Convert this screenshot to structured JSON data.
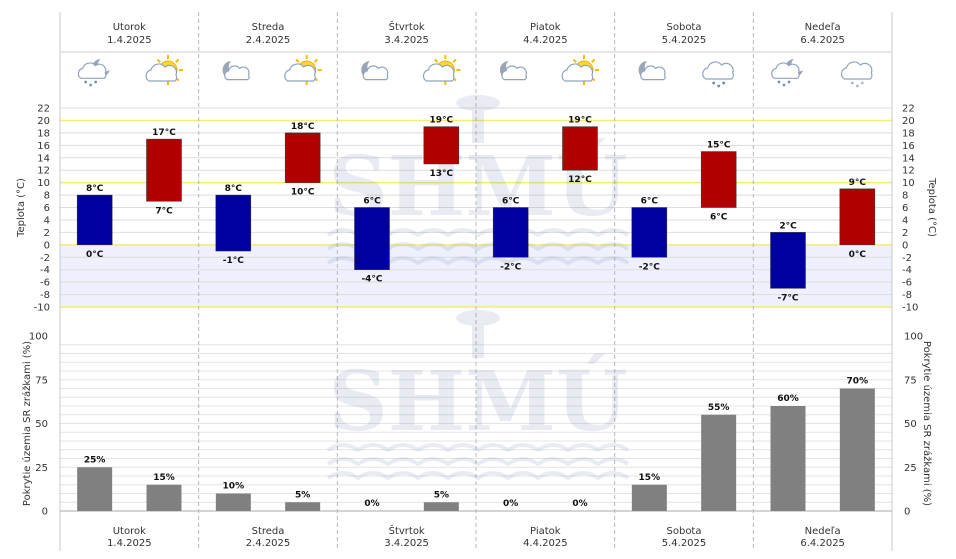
{
  "days": [
    {
      "name": "Utorok",
      "date": "1.4.2025",
      "icons": [
        "night-cloudy-rain-icon",
        "partly-sunny-icon"
      ]
    },
    {
      "name": "Streda",
      "date": "2.4.2025",
      "icons": [
        "partly-cloudy-night-icon",
        "partly-sunny-icon"
      ]
    },
    {
      "name": "Štvrtok",
      "date": "3.4.2025",
      "icons": [
        "clear-night-cloud-icon",
        "sun-behind-cloud-icon"
      ]
    },
    {
      "name": "Piatok",
      "date": "4.4.2025",
      "icons": [
        "clear-night-cloud-icon",
        "sun-behind-cloud-icon"
      ]
    },
    {
      "name": "Sobota",
      "date": "5.4.2025",
      "icons": [
        "partly-cloudy-night-icon",
        "cloudy-rain-icon"
      ]
    },
    {
      "name": "Nedeľa",
      "date": "6.4.2025",
      "icons": [
        "night-cloudy-rain-icon",
        "cloudy-snow-icon"
      ]
    }
  ],
  "watermark": "SHMÚ",
  "chart_data": [
    {
      "type": "bar",
      "subtype": "range",
      "ylabel": "Teplota (°C)",
      "ylabel_right": "Teplota (°C)",
      "ylim": [
        -10,
        22
      ],
      "yticks": [
        -10,
        -8,
        -6,
        -4,
        -2,
        0,
        2,
        4,
        6,
        8,
        10,
        12,
        14,
        16,
        18,
        20,
        22
      ],
      "highlight_lines": [
        -10,
        0,
        10,
        20
      ],
      "shaded_range": [
        -10,
        0
      ],
      "value_suffix": "°C",
      "series": [
        {
          "color": "#0000a0",
          "ranges": [
            [
              0,
              8
            ],
            [
              -1,
              8
            ],
            [
              -4,
              6
            ],
            [
              -2,
              6
            ],
            [
              -2,
              6
            ],
            [
              -7,
              2
            ]
          ]
        },
        {
          "color": "#b00000",
          "ranges": [
            [
              7,
              17
            ],
            [
              10,
              18
            ],
            [
              13,
              19
            ],
            [
              12,
              19
            ],
            [
              6,
              15
            ],
            [
              0,
              9
            ]
          ]
        }
      ]
    },
    {
      "type": "bar",
      "ylabel": "Pokrytie územia SR zrážkami (%)",
      "ylabel_right": "Pokrytie územia SR zrážkami (%)",
      "ylim": [
        0,
        100
      ],
      "yticks": [
        0,
        25,
        50,
        75,
        100
      ],
      "value_suffix": "%",
      "color": "#808080",
      "values": [
        25,
        15,
        10,
        5,
        0,
        5,
        0,
        0,
        15,
        55,
        60,
        70
      ]
    }
  ]
}
